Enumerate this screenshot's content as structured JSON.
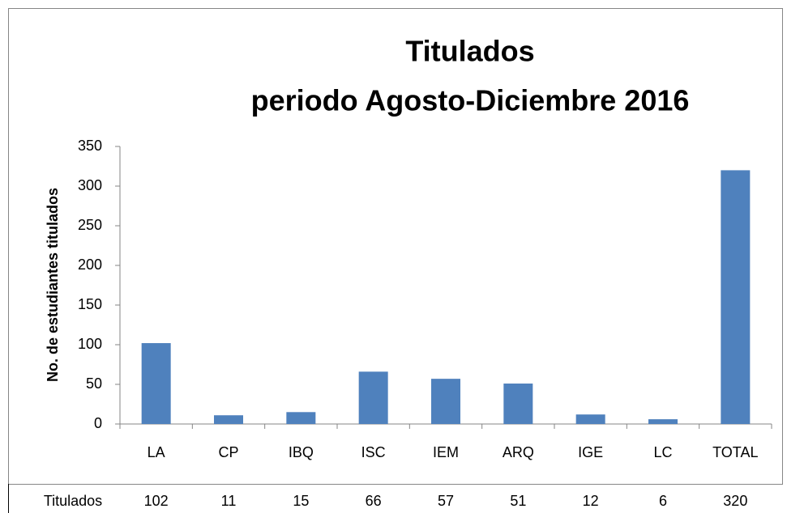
{
  "chart_data": {
    "type": "bar",
    "title": "Titulados",
    "subtitle": "periodo Agosto-Diciembre 2016",
    "y_label": "No. de estudiantes titulados",
    "categories": [
      "LA",
      "CP",
      "IBQ",
      "ISC",
      "IEM",
      "ARQ",
      "IGE",
      "LC",
      "TOTAL"
    ],
    "series": [
      {
        "name": "Titulados",
        "color": "#4f81bd",
        "values": [
          102,
          11,
          15,
          66,
          57,
          51,
          12,
          6,
          320
        ]
      }
    ],
    "ylim": [
      0,
      350
    ],
    "yticks": [
      0,
      50,
      100,
      150,
      200,
      250,
      300,
      350
    ],
    "grid": false,
    "data_table": true
  }
}
